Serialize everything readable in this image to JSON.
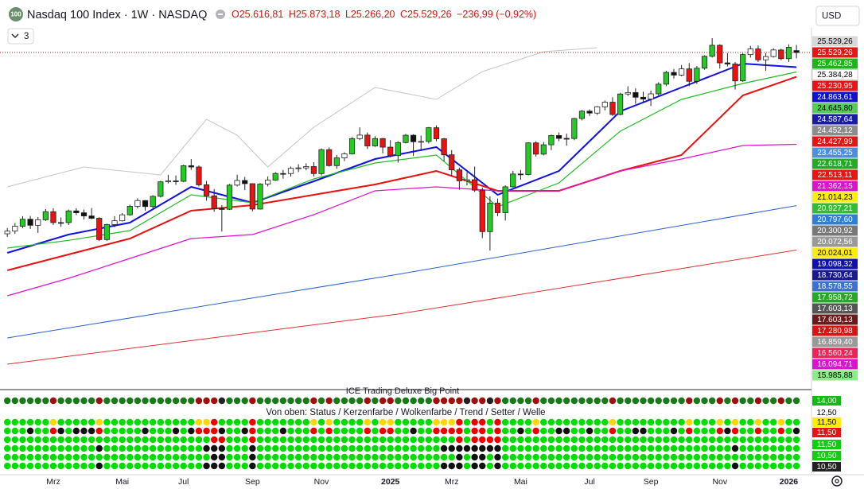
{
  "header": {
    "badge": "100",
    "symbol": "Nasdaq 100 Index · 1W · NASDAQ",
    "quote": [
      "O25.616,81",
      "H25.873,18",
      "L25.266,20",
      "C25.529,26",
      "−236,99 (−0,92%)"
    ],
    "currency": "USD",
    "indicator_count": "3"
  },
  "chart_data": {
    "type": "candlestick",
    "categories": [
      null,
      null,
      null,
      null,
      null,
      null,
      "Mrz",
      null,
      null,
      null,
      null,
      null,
      null,
      null,
      null,
      "Mai",
      null,
      null,
      null,
      null,
      null,
      null,
      null,
      "Jul",
      null,
      null,
      null,
      null,
      null,
      null,
      null,
      null,
      "Sep",
      null,
      null,
      null,
      null,
      null,
      null,
      null,
      null,
      "Nov",
      null,
      null,
      null,
      null,
      null,
      null,
      null,
      null,
      "2025",
      null,
      null,
      null,
      null,
      null,
      null,
      null,
      "Mrz",
      null,
      null,
      null,
      null,
      null,
      null,
      null,
      null,
      "Mai",
      null,
      null,
      null,
      null,
      null,
      null,
      null,
      null,
      "Jul",
      null,
      null,
      null,
      null,
      null,
      null,
      null,
      "Sep",
      null,
      null,
      null,
      null,
      null,
      null,
      null,
      null,
      "Nov",
      null,
      null,
      null,
      null,
      null,
      null,
      null,
      null,
      "2026",
      null
    ],
    "open": [
      17300,
      17421,
      17642,
      17962,
      17685,
      17937,
      18302,
      17809,
      17808,
      18339,
      18254,
      18110,
      18003,
      17037,
      17718,
      17890,
      18161,
      18546,
      18808,
      18537,
      19000,
      19659,
      19700,
      19683,
      20392,
      20332,
      19523,
      19023,
      18440,
      18413,
      19509,
      19720,
      19575,
      18421,
      19556,
      19736,
      20037,
      20035,
      20272,
      20292,
      20352,
      20033,
      21117,
      20394,
      20745,
      20930,
      21622,
      21780,
      21289,
      21622,
      21233,
      20847,
      21441,
      21774,
      21478,
      21491,
      22115,
      21614,
      20885,
      20201,
      19704,
      19754,
      19281,
      17397,
      18690,
      18258,
      19432,
      20013,
      19992,
      21427,
      20915,
      21340,
      21761,
      21631,
      21626,
      22534,
      22867,
      22780,
      23065,
      23273,
      22715,
      23646,
      23713,
      23498,
      23415,
      23653,
      24093,
      24626,
      24503,
      24786,
      24222,
      24818,
      25358,
      25858,
      25059,
      25008,
      24240,
      25435,
      25693,
      25197,
      25346,
      25645,
      25250,
      25616.81
    ],
    "high": [
      17560,
      17790,
      18100,
      18110,
      18060,
      18420,
      18460,
      18040,
      18400,
      18460,
      18400,
      18470,
      18050,
      17760,
      18100,
      18240,
      18620,
      18910,
      18830,
      19050,
      19700,
      19980,
      19950,
      20430,
      20690,
      20400,
      19700,
      19330,
      18600,
      19560,
      19980,
      19880,
      19580,
      19600,
      19900,
      20100,
      20200,
      20350,
      20460,
      20500,
      20550,
      21180,
      21220,
      20880,
      21000,
      21680,
      22130,
      21900,
      21730,
      21650,
      21550,
      21500,
      21830,
      21820,
      21760,
      22150,
      22220,
      21650,
      21100,
      20300,
      20100,
      20350,
      19400,
      19000,
      18900,
      19500,
      20150,
      20200,
      21450,
      21500,
      21470,
      21800,
      21900,
      21850,
      22560,
      22920,
      22950,
      23100,
      23350,
      23500,
      23700,
      24000,
      23900,
      23750,
      23800,
      24180,
      24700,
      24780,
      24960,
      25050,
      24920,
      25400,
      26180,
      25900,
      25500,
      25100,
      25500,
      25830,
      25850,
      25500,
      25720,
      25700,
      25900,
      25873.18
    ],
    "low": [
      17160,
      17300,
      17560,
      17520,
      17340,
      17880,
      17700,
      17620,
      17700,
      18150,
      17950,
      17960,
      16970,
      16980,
      17600,
      17860,
      18120,
      18450,
      18350,
      18450,
      18950,
      19590,
      19520,
      19640,
      20200,
      19450,
      18800,
      18300,
      17400,
      18380,
      19450,
      19280,
      18320,
      18400,
      19450,
      19700,
      19800,
      19900,
      20100,
      20180,
      19900,
      19950,
      20350,
      20250,
      20600,
      20900,
      21550,
      21150,
      21250,
      20950,
      20770,
      20530,
      21400,
      20830,
      21050,
      21400,
      21500,
      20590,
      19900,
      19300,
      19500,
      19200,
      17100,
      16540,
      18100,
      17900,
      19400,
      19750,
      19950,
      20800,
      20860,
      21100,
      21500,
      21300,
      21550,
      22450,
      22650,
      22700,
      22900,
      22650,
      22680,
      23560,
      23200,
      23300,
      23100,
      23580,
      24000,
      24350,
      24450,
      24000,
      24100,
      24750,
      25300,
      24800,
      24900,
      23850,
      24200,
      25300,
      25100,
      24700,
      25300,
      25180,
      25100,
      25266.2
    ],
    "close": [
      17421,
      17642,
      17962,
      17685,
      17937,
      18302,
      17809,
      17808,
      18339,
      18254,
      18110,
      18003,
      17037,
      17718,
      17890,
      18161,
      18546,
      18808,
      18537,
      19000,
      19659,
      19700,
      19683,
      20392,
      20332,
      19523,
      19023,
      18440,
      18413,
      19509,
      19720,
      19575,
      18421,
      19556,
      19736,
      20037,
      20035,
      20272,
      20292,
      20352,
      20033,
      21117,
      20394,
      20745,
      20930,
      21622,
      21780,
      21289,
      21622,
      21233,
      20847,
      21441,
      21774,
      21478,
      21491,
      22115,
      21614,
      20885,
      20201,
      19704,
      19754,
      19281,
      17397,
      18690,
      18258,
      19432,
      20013,
      19992,
      21427,
      20915,
      21340,
      21761,
      21631,
      21626,
      22534,
      22867,
      22780,
      23065,
      23273,
      22715,
      23646,
      23713,
      23498,
      23415,
      23653,
      24093,
      24626,
      24503,
      24786,
      24222,
      24818,
      25358,
      25858,
      25059,
      25008,
      24240,
      25435,
      25693,
      25197,
      25346,
      25645,
      25250,
      25766,
      25529.26
    ],
    "up_color": "#ffffff",
    "strong_up_color": "#22cc22",
    "down_color": "#111111",
    "strong_down_color": "#ee1111",
    "lines": [
      {
        "color": "#1010e0",
        "width": 2,
        "x": [
          0,
          8,
          16,
          24,
          32,
          40,
          48,
          56,
          64,
          72,
          80,
          88,
          96,
          103
        ],
        "values": [
          16435,
          17265,
          17807,
          19431,
          18709,
          19684,
          20695,
          21236,
          19070,
          20153,
          22861,
          23944,
          25027,
          24863.61
        ]
      },
      {
        "color": "#e81010",
        "width": 2,
        "x": [
          0,
          8,
          16,
          24,
          32,
          40,
          48,
          56,
          64,
          72,
          80,
          88,
          96,
          103
        ],
        "values": [
          15641,
          16363,
          17085,
          18348,
          18601,
          19070,
          19540,
          20153,
          19251,
          19251,
          20153,
          20875,
          23583,
          24427.99
        ]
      },
      {
        "color": "#22bb22",
        "width": 1.2,
        "x": [
          0,
          8,
          16,
          24,
          32,
          40,
          48,
          56,
          64,
          72,
          80,
          88,
          96,
          103
        ],
        "values": [
          16650,
          17000,
          17445,
          19070,
          18709,
          19791,
          20514,
          20875,
          18528,
          19612,
          21958,
          23402,
          24124,
          24645.8
        ]
      },
      {
        "color": "#e010d0",
        "width": 1.2,
        "x": [
          0,
          8,
          16,
          24,
          32,
          40,
          48,
          56,
          64,
          72,
          80,
          88,
          96,
          103
        ],
        "values": [
          14486,
          15280,
          16182,
          17085,
          17265,
          18168,
          19251,
          19431,
          19251,
          19251,
          20153,
          20695,
          21308,
          21362.15
        ]
      },
      {
        "color": "#2a5fd0",
        "width": 1,
        "x": [
          0,
          51,
          103
        ],
        "values": [
          12572,
          15460,
          18578.55
        ]
      },
      {
        "color": "#e03030",
        "width": 1,
        "x": [
          0,
          51,
          103
        ],
        "values": [
          11381,
          13655,
          16560.24
        ]
      },
      {
        "color": "#c4c4c4",
        "width": 1,
        "x": [
          0,
          10,
          20,
          26,
          30,
          34,
          40,
          48,
          56,
          62,
          70,
          77
        ],
        "values": [
          19431,
          20334,
          19973,
          22500,
          21778,
          20334,
          22139,
          23944,
          23402,
          24666,
          25568,
          25749
        ]
      }
    ],
    "ylim": [
      10225,
      26650
    ],
    "price_tags": [
      {
        "value": 25529.26,
        "label": "25.529,26",
        "color": "#d8d8d8"
      },
      {
        "value": 25529.26,
        "label": "25.529,26",
        "color": "#ee1111"
      },
      {
        "value": 25462.85,
        "label": "25.462,85",
        "color": "#11bb11"
      },
      {
        "value": 25384.28,
        "label": "25.384,28",
        "color": "#ffffff"
      },
      {
        "value": 25230.95,
        "label": "25.230,95",
        "color": "#ee1111"
      },
      {
        "value": 24863.61,
        "label": "24.863,61",
        "color": "#1010d0"
      },
      {
        "value": 24645.8,
        "label": "24.645,80",
        "color": "#55cc55"
      },
      {
        "value": 24587.64,
        "label": "24.587,64",
        "color": "#1a1aa8"
      },
      {
        "value": 24452.12,
        "label": "24.452,12",
        "color": "#8c8c8c"
      },
      {
        "value": 24427.99,
        "label": "24.427,99",
        "color": "#ee1111"
      },
      {
        "value": 23455.25,
        "label": "23.455,25",
        "color": "#4a90e2"
      },
      {
        "value": 22618.71,
        "label": "22.618,71",
        "color": "#22aa22"
      },
      {
        "value": 22513.11,
        "label": "22.513,11",
        "color": "#ee1111"
      },
      {
        "value": 21362.15,
        "label": "21.362,15",
        "color": "#e010d0"
      },
      {
        "value": 21014.23,
        "label": "21.014,23",
        "color": "#ffee00"
      },
      {
        "value": 20927.21,
        "label": "20.927,21",
        "color": "#33bb33"
      },
      {
        "value": 20797.6,
        "label": "20.797,60",
        "color": "#2a7fd8"
      },
      {
        "value": 20300.92,
        "label": "20.300,92",
        "color": "#777777"
      },
      {
        "value": 20072.56,
        "label": "20.072,56",
        "color": "#999999"
      },
      {
        "value": 20024.01,
        "label": "20.024,01",
        "color": "#ffee00"
      },
      {
        "value": 19098.32,
        "label": "19.098,32",
        "color": "#1010b0"
      },
      {
        "value": 18730.64,
        "label": "18.730,64",
        "color": "#1a1a90"
      },
      {
        "value": 18578.55,
        "label": "18.578,55",
        "color": "#3a70d8"
      },
      {
        "value": 17958.72,
        "label": "17.958,72",
        "color": "#22aa22"
      },
      {
        "value": 17603.13,
        "label": "17.603,13",
        "color": "#555555"
      },
      {
        "value": 17603.13,
        "label": "17.603,13",
        "color": "#6a1a1a"
      },
      {
        "value": 17280.98,
        "label": "17.280,98",
        "color": "#dd1111"
      },
      {
        "value": 16859.4,
        "label": "16.859,40",
        "color": "#999999"
      },
      {
        "value": 16560.24,
        "label": "16.560,24",
        "color": "#ee2255"
      },
      {
        "value": 16094.71,
        "label": "16.094,71",
        "color": "#e010d0"
      },
      {
        "value": 15985.88,
        "label": "15.985,88",
        "color": "#88ee88"
      }
    ]
  },
  "indicator_panel": {
    "title": "ICE Trading Deluxe Big Point",
    "subtitle": "Von oben: Status / Kerzenfarbe / Wolkenfarbe / Trend / Setter / Welle",
    "tags": [
      {
        "label": "14,00",
        "color": "#11bb11"
      },
      {
        "label": "12,50",
        "color": "#ffffff"
      },
      {
        "label": "11,50",
        "color": "#ffee00"
      },
      {
        "label": "11,50",
        "color": "#ee1111"
      },
      {
        "label": "11,50",
        "color": "#11cc11"
      },
      {
        "label": "10,50",
        "color": "#11cc11"
      },
      {
        "label": "10,50",
        "color": "#222222"
      }
    ]
  }
}
